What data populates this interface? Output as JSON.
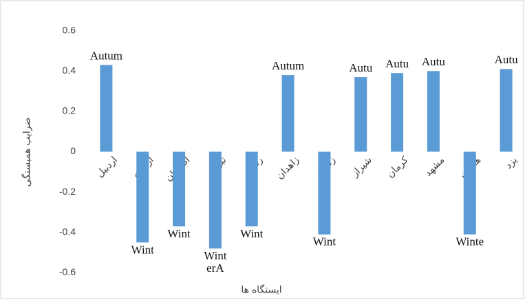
{
  "chart_data": {
    "type": "bar",
    "y_axis_label": "ضرایب همبستگی",
    "x_axis_label": "ایستگاه ها",
    "categories": [
      "اردبیل",
      "ارومیه",
      "اصفهان",
      "تبریز",
      "رشت",
      "زاهدان",
      "زنجان",
      "شیراز",
      "کرمان",
      "مشهد",
      "همدان",
      "یزد"
    ],
    "values": [
      0.43,
      -0.45,
      -0.37,
      -0.48,
      -0.37,
      0.38,
      -0.41,
      0.37,
      0.39,
      0.4,
      -0.41,
      0.41
    ],
    "data_labels": [
      "Autum",
      "Wint",
      "Wint",
      [
        "Wint",
        "erA"
      ],
      "Wint",
      "Autum",
      "Wint",
      "Autu",
      "Autu",
      "Autu",
      "Winte",
      "Autu"
    ],
    "color": "#5b9bd5",
    "ylim": [
      -0.65,
      0.65
    ],
    "yticks": [
      -0.6,
      -0.4,
      -0.2,
      0,
      0.2,
      0.4,
      0.6
    ],
    "grid": false
  }
}
